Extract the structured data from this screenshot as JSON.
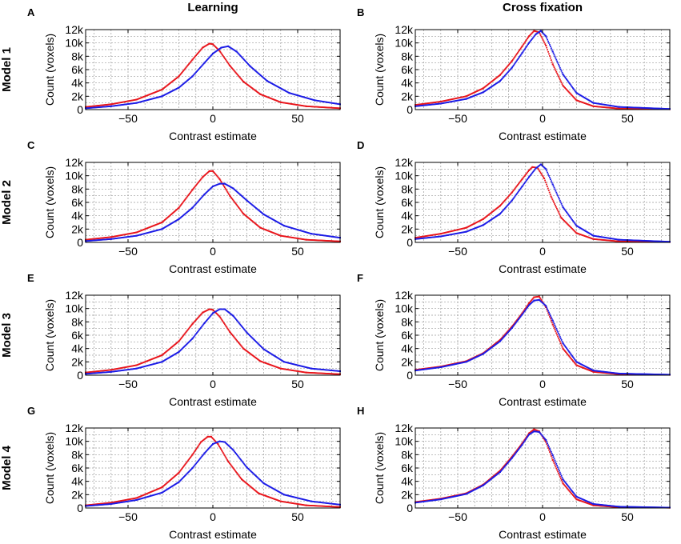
{
  "columns": [
    "Learning",
    "Cross fixation"
  ],
  "rows": [
    "Model 1",
    "Model 2",
    "Model 3",
    "Model 4"
  ],
  "colors": {
    "red": "#e8141b",
    "blue": "#1a1ae6"
  },
  "chart_data": [
    {
      "panel": "A",
      "type": "line",
      "xlabel": "Contrast estimate",
      "ylabel": "Count (voxels)",
      "xlim": [
        -75,
        75
      ],
      "ylim": [
        0,
        12000
      ],
      "xticks": [
        -50,
        0,
        50
      ],
      "xtick_labels": [
        "−50",
        "0",
        "50"
      ],
      "yticks": [
        0,
        2000,
        4000,
        6000,
        8000,
        10000,
        12000
      ],
      "ytick_labels": [
        "0",
        "2k",
        "4k",
        "6k",
        "8k",
        "10k",
        "12k"
      ],
      "series": [
        {
          "name": "red",
          "color": "#e8141b",
          "x": [
            -75,
            -60,
            -45,
            -30,
            -20,
            -12,
            -6,
            -2,
            0,
            4,
            10,
            18,
            28,
            40,
            55,
            75
          ],
          "values": [
            400,
            800,
            1500,
            3000,
            5000,
            7500,
            9300,
            9900,
            9800,
            8800,
            6600,
            4200,
            2300,
            1100,
            500,
            200
          ]
        },
        {
          "name": "blue",
          "color": "#1a1ae6",
          "x": [
            -75,
            -60,
            -45,
            -30,
            -20,
            -12,
            -5,
            0,
            5,
            9,
            14,
            22,
            32,
            45,
            60,
            75
          ],
          "values": [
            200,
            500,
            1000,
            2000,
            3300,
            5000,
            7000,
            8400,
            9300,
            9500,
            8700,
            6500,
            4300,
            2500,
            1400,
            800
          ]
        }
      ]
    },
    {
      "panel": "B",
      "type": "line",
      "xlabel": "Contrast estimate",
      "ylabel": "Count (voxels)",
      "xlim": [
        -75,
        75
      ],
      "ylim": [
        0,
        12000
      ],
      "xticks": [
        -50,
        0,
        50
      ],
      "xtick_labels": [
        "−50",
        "0",
        "50"
      ],
      "yticks": [
        0,
        2000,
        4000,
        6000,
        8000,
        10000,
        12000
      ],
      "ytick_labels": [
        "0",
        "2k",
        "4k",
        "6k",
        "8k",
        "10k",
        "12k"
      ],
      "series": [
        {
          "name": "red",
          "color": "#e8141b",
          "x": [
            -75,
            -60,
            -45,
            -35,
            -25,
            -18,
            -12,
            -8,
            -5,
            -2,
            2,
            6,
            12,
            20,
            30,
            45,
            75
          ],
          "values": [
            700,
            1200,
            2000,
            3200,
            5200,
            7300,
            9500,
            11000,
            11800,
            11600,
            9600,
            6800,
            3600,
            1400,
            500,
            150,
            50
          ]
        },
        {
          "name": "blue",
          "color": "#1a1ae6",
          "x": [
            -75,
            -60,
            -45,
            -35,
            -25,
            -18,
            -12,
            -8,
            -4,
            -1,
            2,
            6,
            12,
            20,
            30,
            45,
            75
          ],
          "values": [
            500,
            900,
            1600,
            2600,
            4300,
            6300,
            8500,
            10000,
            11300,
            11800,
            11000,
            8700,
            5300,
            2500,
            1000,
            400,
            100
          ]
        }
      ]
    },
    {
      "panel": "C",
      "type": "line",
      "xlabel": "Contrast estimate",
      "ylabel": "Count (voxels)",
      "xlim": [
        -75,
        75
      ],
      "ylim": [
        0,
        12000
      ],
      "xticks": [
        -50,
        0,
        50
      ],
      "xtick_labels": [
        "−50",
        "0",
        "50"
      ],
      "yticks": [
        0,
        2000,
        4000,
        6000,
        8000,
        10000,
        12000
      ],
      "ytick_labels": [
        "0",
        "2k",
        "4k",
        "6k",
        "8k",
        "10k",
        "12k"
      ],
      "series": [
        {
          "name": "red",
          "color": "#e8141b",
          "x": [
            -75,
            -60,
            -45,
            -30,
            -20,
            -12,
            -6,
            -2,
            0,
            4,
            10,
            18,
            28,
            40,
            55,
            75
          ],
          "values": [
            400,
            800,
            1500,
            3000,
            5200,
            7900,
            9800,
            10700,
            10700,
            9500,
            7000,
            4300,
            2200,
            1000,
            400,
            150
          ]
        },
        {
          "name": "blue",
          "color": "#1a1ae6",
          "x": [
            -75,
            -60,
            -45,
            -30,
            -20,
            -12,
            -5,
            0,
            4,
            7,
            12,
            20,
            30,
            42,
            58,
            75
          ],
          "values": [
            200,
            500,
            1000,
            2000,
            3500,
            5200,
            7200,
            8400,
            8800,
            8800,
            8100,
            6300,
            4200,
            2500,
            1300,
            700
          ]
        }
      ]
    },
    {
      "panel": "D",
      "type": "line",
      "xlabel": "Contrast estimate",
      "ylabel": "Count (voxels)",
      "xlim": [
        -75,
        75
      ],
      "ylim": [
        0,
        12000
      ],
      "xticks": [
        -50,
        0,
        50
      ],
      "xtick_labels": [
        "−50",
        "0",
        "50"
      ],
      "yticks": [
        0,
        2000,
        4000,
        6000,
        8000,
        10000,
        12000
      ],
      "ytick_labels": [
        "0",
        "2k",
        "4k",
        "6k",
        "8k",
        "10k",
        "12k"
      ],
      "series": [
        {
          "name": "red",
          "color": "#e8141b",
          "x": [
            -75,
            -60,
            -45,
            -35,
            -25,
            -18,
            -12,
            -8,
            -6,
            -3,
            1,
            5,
            11,
            20,
            30,
            45,
            75
          ],
          "values": [
            700,
            1300,
            2200,
            3500,
            5500,
            7500,
            9500,
            10800,
            11300,
            11200,
            9600,
            6900,
            3700,
            1400,
            500,
            150,
            50
          ]
        },
        {
          "name": "blue",
          "color": "#1a1ae6",
          "x": [
            -75,
            -60,
            -45,
            -35,
            -25,
            -18,
            -12,
            -8,
            -4,
            -1,
            2,
            6,
            12,
            20,
            30,
            45,
            75
          ],
          "values": [
            500,
            900,
            1600,
            2600,
            4300,
            6300,
            8400,
            9800,
            11100,
            11700,
            11000,
            8700,
            5300,
            2500,
            1000,
            400,
            100
          ]
        }
      ]
    },
    {
      "panel": "E",
      "type": "line",
      "xlabel": "Contrast estimate",
      "ylabel": "Count (voxels)",
      "xlim": [
        -75,
        75
      ],
      "ylim": [
        0,
        12000
      ],
      "xticks": [
        -50,
        0,
        50
      ],
      "xtick_labels": [
        "−50",
        "0",
        "50"
      ],
      "yticks": [
        0,
        2000,
        4000,
        6000,
        8000,
        10000,
        12000
      ],
      "ytick_labels": [
        "0",
        "2k",
        "4k",
        "6k",
        "8k",
        "10k",
        "12k"
      ],
      "series": [
        {
          "name": "red",
          "color": "#e8141b",
          "x": [
            -75,
            -60,
            -45,
            -30,
            -20,
            -12,
            -6,
            -2,
            0,
            4,
            10,
            18,
            28,
            40,
            55,
            75
          ],
          "values": [
            400,
            800,
            1500,
            3000,
            5100,
            7700,
            9400,
            9900,
            9800,
            8800,
            6500,
            4000,
            2100,
            1000,
            400,
            150
          ]
        },
        {
          "name": "blue",
          "color": "#1a1ae6",
          "x": [
            -75,
            -60,
            -45,
            -30,
            -20,
            -12,
            -5,
            0,
            4,
            7,
            12,
            20,
            30,
            42,
            58,
            75
          ],
          "values": [
            200,
            500,
            1000,
            2000,
            3500,
            5500,
            7800,
            9300,
            9900,
            9900,
            8900,
            6400,
            3900,
            2000,
            1000,
            600
          ]
        }
      ]
    },
    {
      "panel": "F",
      "type": "line",
      "xlabel": "Contrast estimate",
      "ylabel": "Count (voxels)",
      "xlim": [
        -75,
        75
      ],
      "ylim": [
        0,
        12000
      ],
      "xticks": [
        -50,
        0,
        50
      ],
      "xtick_labels": [
        "−50",
        "0",
        "50"
      ],
      "yticks": [
        0,
        2000,
        4000,
        6000,
        8000,
        10000,
        12000
      ],
      "ytick_labels": [
        "0",
        "2k",
        "4k",
        "6k",
        "8k",
        "10k",
        "12k"
      ],
      "series": [
        {
          "name": "red",
          "color": "#e8141b",
          "x": [
            -75,
            -60,
            -45,
            -35,
            -25,
            -18,
            -12,
            -8,
            -5,
            -2,
            2,
            6,
            12,
            20,
            30,
            45,
            75
          ],
          "values": [
            800,
            1300,
            2100,
            3300,
            5300,
            7300,
            9300,
            10800,
            11700,
            11800,
            10200,
            7600,
            4000,
            1500,
            500,
            150,
            50
          ]
        },
        {
          "name": "blue",
          "color": "#1a1ae6",
          "x": [
            -75,
            -60,
            -45,
            -35,
            -25,
            -18,
            -12,
            -8,
            -5,
            -2,
            2,
            6,
            12,
            20,
            30,
            45,
            75
          ],
          "values": [
            700,
            1200,
            2000,
            3200,
            5100,
            7100,
            9100,
            10500,
            11200,
            11300,
            10400,
            8200,
            4800,
            2000,
            700,
            250,
            80
          ]
        }
      ]
    },
    {
      "panel": "G",
      "type": "line",
      "xlabel": "Contrast estimate",
      "ylabel": "Count (voxels)",
      "xlim": [
        -75,
        75
      ],
      "ylim": [
        0,
        12000
      ],
      "xticks": [
        -50,
        0,
        50
      ],
      "xtick_labels": [
        "−50",
        "0",
        "50"
      ],
      "yticks": [
        0,
        2000,
        4000,
        6000,
        8000,
        10000,
        12000
      ],
      "ytick_labels": [
        "0",
        "2k",
        "4k",
        "6k",
        "8k",
        "10k",
        "12k"
      ],
      "series": [
        {
          "name": "red",
          "color": "#e8141b",
          "x": [
            -75,
            -60,
            -45,
            -30,
            -20,
            -12,
            -7,
            -3,
            -1,
            3,
            9,
            17,
            27,
            40,
            55,
            75
          ],
          "values": [
            400,
            800,
            1500,
            3100,
            5300,
            8000,
            9900,
            10700,
            10700,
            9600,
            7000,
            4300,
            2200,
            1000,
            400,
            150
          ]
        },
        {
          "name": "blue",
          "color": "#1a1ae6",
          "x": [
            -75,
            -60,
            -45,
            -30,
            -20,
            -12,
            -5,
            0,
            4,
            7,
            12,
            20,
            30,
            42,
            58,
            75
          ],
          "values": [
            300,
            600,
            1200,
            2300,
            3900,
            6000,
            8200,
            9600,
            10000,
            9900,
            8700,
            6100,
            3700,
            2000,
            1000,
            500
          ]
        }
      ]
    },
    {
      "panel": "H",
      "type": "line",
      "xlabel": "Contrast estimate",
      "ylabel": "Count (voxels)",
      "xlim": [
        -75,
        75
      ],
      "ylim": [
        0,
        12000
      ],
      "xticks": [
        -50,
        0,
        50
      ],
      "xtick_labels": [
        "−50",
        "0",
        "50"
      ],
      "yticks": [
        0,
        2000,
        4000,
        6000,
        8000,
        10000,
        12000
      ],
      "ytick_labels": [
        "0",
        "2k",
        "4k",
        "6k",
        "8k",
        "10k",
        "12k"
      ],
      "series": [
        {
          "name": "red",
          "color": "#e8141b",
          "x": [
            -75,
            -60,
            -45,
            -35,
            -25,
            -18,
            -12,
            -8,
            -5,
            -2,
            2,
            6,
            12,
            20,
            30,
            45,
            75
          ],
          "values": [
            900,
            1400,
            2200,
            3500,
            5600,
            7700,
            9700,
            11200,
            11800,
            11500,
            9900,
            7200,
            3700,
            1300,
            400,
            120,
            40
          ]
        },
        {
          "name": "blue",
          "color": "#1a1ae6",
          "x": [
            -75,
            -60,
            -45,
            -35,
            -25,
            -18,
            -12,
            -8,
            -5,
            -2,
            2,
            6,
            12,
            20,
            30,
            45,
            75
          ],
          "values": [
            800,
            1300,
            2100,
            3400,
            5400,
            7500,
            9500,
            11000,
            11500,
            11400,
            10200,
            7900,
            4300,
            1700,
            600,
            200,
            60
          ]
        }
      ]
    }
  ]
}
